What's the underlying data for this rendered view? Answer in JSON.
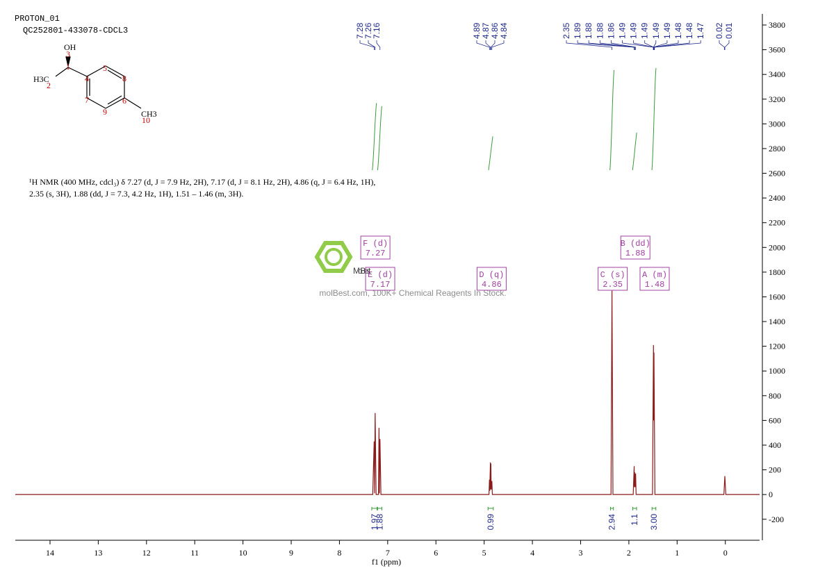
{
  "header": {
    "experiment": "PROTON_01",
    "sample": "QC252801-433078-CDCL3"
  },
  "structure": {
    "atoms": [
      "OH",
      "H3C",
      "CH3"
    ],
    "numbers": [
      "1",
      "2",
      "3",
      "4",
      "5",
      "6",
      "7",
      "8",
      "9",
      "10"
    ]
  },
  "description": [
    "¹H NMR (400 MHz, cdcl₃) δ 7.27 (d, J = 7.9 Hz, 2H), 7.17 (d, J = 8.1 Hz, 2H), 4.86 (q, J = 6.4 Hz, 1H),",
    "2.35 (s, 3H), 1.88 (dd, J = 7.3, 4.2 Hz, 1H), 1.51 – 1.46 (m, 3H)."
  ],
  "watermark": {
    "brand": "MolBest",
    "tagline": "molBest.com, 100K+ Chemical Reagents In Stock."
  },
  "chart_data": {
    "type": "line",
    "xlabel": "f1 (ppm)",
    "color": "#8b1a1a",
    "xlim": [
      14.72,
      -0.71
    ],
    "xticks": [
      14,
      13,
      12,
      11,
      10,
      9,
      8,
      7,
      6,
      5,
      4,
      3,
      2,
      1,
      0
    ],
    "ylim": [
      -370,
      3890
    ],
    "yticks": [
      -200,
      0,
      200,
      400,
      600,
      800,
      1000,
      1200,
      1400,
      1600,
      1800,
      2000,
      2200,
      2400,
      2600,
      2800,
      3000,
      3200,
      3400,
      3600,
      3800
    ],
    "x": [
      14.72,
      7.31,
      7.28,
      7.272,
      7.26,
      7.24,
      7.19,
      7.18,
      7.172,
      7.16,
      7.14,
      4.9,
      4.89,
      4.885,
      4.87,
      4.865,
      4.86,
      4.855,
      4.84,
      4.83,
      2.37,
      2.35,
      2.33,
      1.91,
      1.89,
      1.885,
      1.88,
      1.87,
      1.86,
      1.85,
      1.51,
      1.49,
      1.485,
      1.48,
      1.46,
      0.03,
      0.01,
      -0.01,
      -0.71
    ],
    "values": [
      0,
      0,
      430,
      10,
      660,
      0,
      0,
      540,
      10,
      450,
      0,
      0,
      120,
      30,
      260,
      40,
      250,
      40,
      110,
      0,
      0,
      1650,
      0,
      0,
      230,
      60,
      180,
      60,
      170,
      0,
      0,
      1210,
      600,
      1150,
      0,
      0,
      150,
      0,
      0
    ],
    "peak_labels": [
      [
        7.28,
        7.26,
        7.16
      ],
      [
        4.89,
        4.87,
        4.86,
        4.84
      ],
      [
        2.35,
        1.89,
        1.88,
        1.88,
        1.86,
        1.49,
        1.49,
        1.49,
        1.49,
        1.49,
        1.48,
        1.48,
        1.47
      ],
      [
        0.02,
        0.01
      ]
    ],
    "integrals": [
      {
        "range": [
          7.33,
          7.22
        ],
        "value": 1.97
      },
      {
        "range": [
          7.21,
          7.12
        ],
        "value": 1.88
      },
      {
        "range": [
          4.92,
          4.81
        ],
        "value": 0.99
      },
      {
        "range": [
          2.38,
          2.32
        ],
        "value": 2.94
      },
      {
        "range": [
          1.92,
          1.84
        ],
        "value": 1.1
      },
      {
        "range": [
          1.52,
          1.44
        ],
        "value": 3,
        "label": "3.00"
      }
    ],
    "multiplets": [
      {
        "name": "F (d)",
        "shift": 7.27
      },
      {
        "name": "E (d)",
        "shift": 7.17
      },
      {
        "name": "D (q)",
        "shift": 4.86
      },
      {
        "name": "C (s)",
        "shift": 2.35
      },
      {
        "name": "B (dd)",
        "shift": 1.88
      },
      {
        "name": "A (m)",
        "shift": 1.48
      }
    ]
  }
}
